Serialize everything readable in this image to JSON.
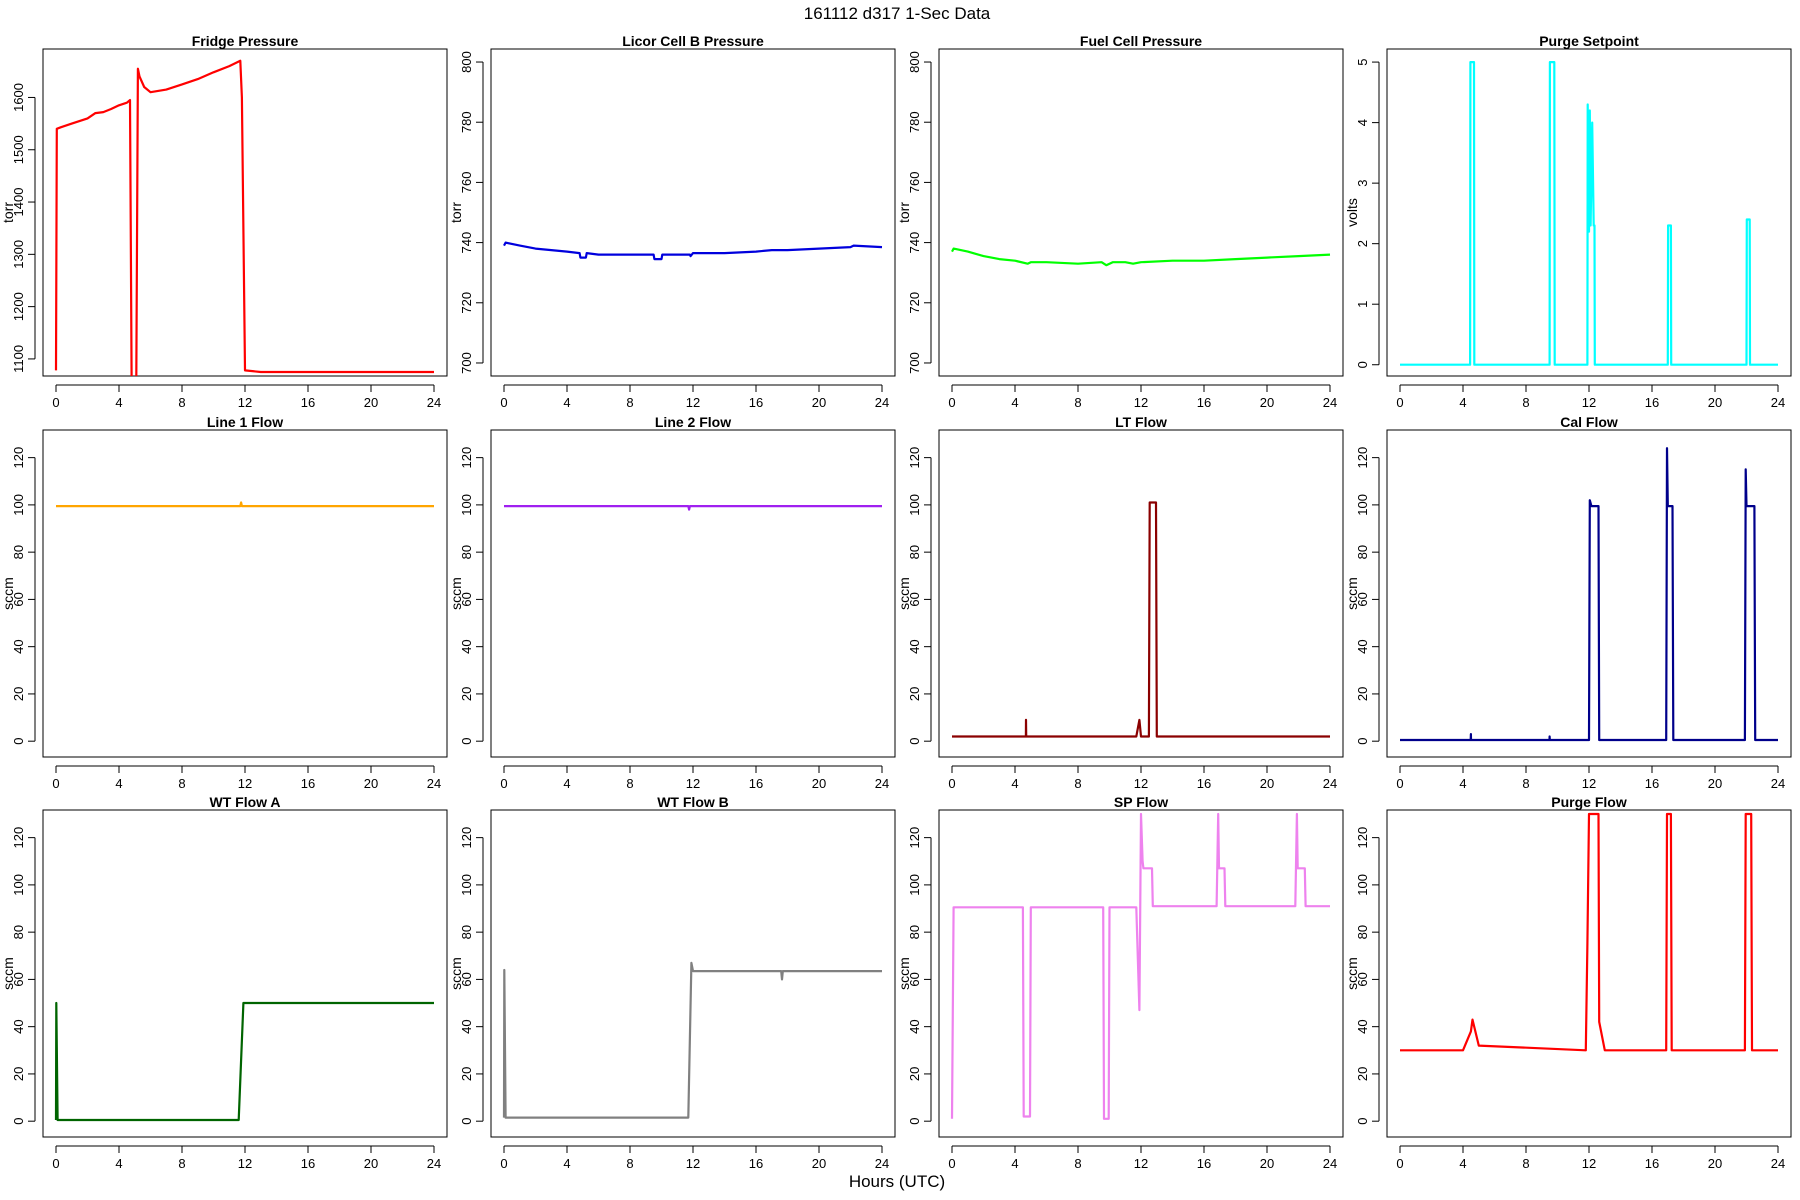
{
  "figure": {
    "title": "161112   d317   1-Sec Data",
    "xlabel": "Hours (UTC)"
  },
  "chart_data": [
    {
      "type": "line",
      "title": "Fridge Pressure",
      "ylabel": "torr",
      "color": "#ff0000",
      "xlim": [
        0,
        24
      ],
      "ylim": [
        1075,
        1685
      ],
      "xticks": [
        0,
        4,
        8,
        12,
        16,
        20,
        24
      ],
      "yticks": [
        1100,
        1200,
        1300,
        1400,
        1500,
        1600
      ],
      "series": [
        {
          "x": [
            0,
            0.05,
            0.3,
            1,
            2,
            2.5,
            3,
            3.5,
            4,
            4.5,
            4.7,
            4.8,
            4.9,
            5.1,
            5.2,
            5.3,
            5.6,
            6,
            7,
            8,
            9,
            10,
            11,
            11.7,
            11.8,
            12,
            13,
            16,
            20,
            24
          ],
          "y": [
            1078,
            1540,
            1543,
            1550,
            1560,
            1570,
            1572,
            1578,
            1585,
            1590,
            1595,
            1065,
            1060,
            1062,
            1655,
            1640,
            1620,
            1610,
            1615,
            1625,
            1635,
            1648,
            1660,
            1670,
            1600,
            1078,
            1075,
            1075,
            1075,
            1075
          ]
        }
      ]
    },
    {
      "type": "line",
      "title": "Licor Cell B Pressure",
      "ylabel": "torr",
      "color": "#0000dd",
      "xlim": [
        0,
        24
      ],
      "ylim": [
        697,
        803
      ],
      "xticks": [
        0,
        4,
        8,
        12,
        16,
        20,
        24
      ],
      "yticks": [
        700,
        720,
        740,
        760,
        780,
        800
      ],
      "series": [
        {
          "x": [
            0,
            0.1,
            1,
            2,
            3,
            4,
            4.8,
            4.85,
            5.2,
            5.25,
            6,
            8,
            9.5,
            9.55,
            10,
            10.05,
            11,
            11.8,
            11.85,
            12,
            14,
            16,
            17,
            18,
            20,
            22,
            22.2,
            24
          ],
          "y": [
            739,
            740,
            739,
            738,
            737.5,
            737,
            736.5,
            735,
            735,
            736.5,
            736,
            736,
            736,
            734.5,
            734.5,
            736,
            736,
            736,
            735.5,
            736.5,
            736.5,
            737,
            737.5,
            737.5,
            738,
            738.5,
            739,
            738.5
          ]
        }
      ]
    },
    {
      "type": "line",
      "title": "Fuel Cell Pressure",
      "ylabel": "torr",
      "color": "#00ff00",
      "xlim": [
        0,
        24
      ],
      "ylim": [
        697,
        803
      ],
      "xticks": [
        0,
        4,
        8,
        12,
        16,
        20,
        24
      ],
      "yticks": [
        700,
        720,
        740,
        760,
        780,
        800
      ],
      "series": [
        {
          "x": [
            0,
            0.1,
            1,
            2,
            3,
            4,
            4.8,
            5,
            6,
            8,
            9.5,
            9.8,
            10.2,
            11,
            11.5,
            12,
            14,
            16,
            18,
            20,
            22,
            24
          ],
          "y": [
            737,
            738,
            737,
            735.5,
            734.5,
            734,
            733,
            733.5,
            733.5,
            733,
            733.5,
            732.5,
            733.5,
            733.5,
            733,
            733.5,
            734,
            734,
            734.5,
            735,
            735.5,
            736
          ]
        }
      ]
    },
    {
      "type": "line",
      "title": "Purge Setpoint",
      "ylabel": "volts",
      "color": "#00ffff",
      "xlim": [
        0,
        24
      ],
      "ylim": [
        -0.12,
        5.15
      ],
      "xticks": [
        0,
        4,
        8,
        12,
        16,
        20,
        24
      ],
      "yticks": [
        0,
        1,
        2,
        3,
        4,
        5
      ],
      "series": [
        {
          "x": [
            0,
            4.45,
            4.47,
            4.7,
            4.72,
            9.5,
            9.52,
            9.8,
            9.82,
            11.9,
            11.92,
            12.0,
            12.05,
            12.1,
            12.2,
            12.3,
            12.35,
            12.37,
            17.0,
            17.02,
            17.2,
            17.22,
            22.0,
            22.02,
            22.2,
            22.22,
            24
          ],
          "y": [
            0,
            0,
            5,
            5,
            0,
            0,
            5,
            5,
            0,
            0,
            4.3,
            2.2,
            4.2,
            2.3,
            4.0,
            2.3,
            2.3,
            0,
            0,
            2.3,
            2.3,
            0,
            0,
            2.4,
            2.4,
            0,
            0
          ]
        }
      ]
    },
    {
      "type": "line",
      "title": "Line 1 Flow",
      "ylabel": "sccm",
      "color": "#ffa500",
      "xlim": [
        0,
        24
      ],
      "ylim": [
        -5,
        130
      ],
      "xticks": [
        0,
        4,
        8,
        12,
        16,
        20,
        24
      ],
      "yticks": [
        0,
        20,
        40,
        60,
        80,
        100,
        120
      ],
      "series": [
        {
          "x": [
            0,
            11.7,
            11.75,
            11.8,
            24
          ],
          "y": [
            99.5,
            99.5,
            101,
            99.5,
            99.5
          ]
        }
      ]
    },
    {
      "type": "line",
      "title": "Line 2 Flow",
      "ylabel": "sccm",
      "color": "#a020f0",
      "xlim": [
        0,
        24
      ],
      "ylim": [
        -5,
        130
      ],
      "xticks": [
        0,
        4,
        8,
        12,
        16,
        20,
        24
      ],
      "yticks": [
        0,
        20,
        40,
        60,
        80,
        100,
        120
      ],
      "series": [
        {
          "x": [
            0,
            11.7,
            11.75,
            11.8,
            24
          ],
          "y": [
            99.5,
            99.5,
            98,
            99.5,
            99.5
          ]
        }
      ]
    },
    {
      "type": "line",
      "title": "LT Flow",
      "ylabel": "sccm",
      "color": "#8b0000",
      "xlim": [
        0,
        24
      ],
      "ylim": [
        -5,
        130
      ],
      "xticks": [
        0,
        4,
        8,
        12,
        16,
        20,
        24
      ],
      "yticks": [
        0,
        20,
        40,
        60,
        80,
        100,
        120
      ],
      "series": [
        {
          "x": [
            0,
            4.69,
            4.7,
            4.71,
            11.7,
            11.9,
            12.0,
            12.5,
            12.55,
            12.95,
            13.0,
            24
          ],
          "y": [
            2,
            2,
            9,
            2,
            2,
            9,
            2,
            2,
            101,
            101,
            2,
            2
          ]
        }
      ]
    },
    {
      "type": "line",
      "title": "Cal Flow",
      "ylabel": "sccm",
      "color": "#00008b",
      "xlim": [
        0,
        24
      ],
      "ylim": [
        -5,
        130
      ],
      "xticks": [
        0,
        4,
        8,
        12,
        16,
        20,
        24
      ],
      "yticks": [
        0,
        20,
        40,
        60,
        80,
        100,
        120
      ],
      "series": [
        {
          "x": [
            0,
            4.49,
            4.5,
            4.51,
            9.49,
            9.5,
            9.51,
            12.0,
            12.05,
            12.15,
            12.6,
            12.65,
            16.9,
            16.95,
            17.0,
            17.3,
            17.35,
            21.9,
            21.95,
            22.0,
            22.5,
            22.55,
            24
          ],
          "y": [
            0.5,
            0.5,
            3,
            0.5,
            0.5,
            2,
            0.5,
            0.5,
            102,
            99.5,
            99.5,
            0.5,
            0.5,
            124,
            99.5,
            99.5,
            0.5,
            0.5,
            115,
            99.5,
            99.5,
            0.5,
            0.5
          ]
        }
      ]
    },
    {
      "type": "line",
      "title": "WT Flow A",
      "ylabel": "sccm",
      "color": "#006400",
      "xlim": [
        0,
        24
      ],
      "ylim": [
        -5,
        130
      ],
      "xticks": [
        0,
        4,
        8,
        12,
        16,
        20,
        24
      ],
      "yticks": [
        0,
        20,
        40,
        60,
        80,
        100,
        120
      ],
      "series": [
        {
          "x": [
            0,
            0.02,
            0.1,
            4,
            8,
            11.6,
            11.9,
            16,
            20,
            24
          ],
          "y": [
            0.5,
            50,
            0.5,
            0.5,
            0.5,
            0.5,
            50,
            50,
            50,
            50
          ]
        }
      ]
    },
    {
      "type": "line",
      "title": "WT Flow B",
      "ylabel": "sccm",
      "color": "#808080",
      "xlim": [
        0,
        24
      ],
      "ylim": [
        -5,
        130
      ],
      "xticks": [
        0,
        4,
        8,
        12,
        16,
        20,
        24
      ],
      "yticks": [
        0,
        20,
        40,
        60,
        80,
        100,
        120
      ],
      "series": [
        {
          "x": [
            0,
            0.02,
            0.1,
            4,
            8,
            11.7,
            11.9,
            12.0,
            16,
            17.6,
            17.65,
            17.7,
            20,
            24
          ],
          "y": [
            1.5,
            64,
            1.5,
            1.5,
            1.5,
            1.5,
            67,
            63.5,
            63.5,
            63.5,
            60,
            63.5,
            63.5,
            63.5
          ]
        }
      ]
    },
    {
      "type": "line",
      "title": "SP Flow",
      "ylabel": "sccm",
      "color": "#ee82ee",
      "xlim": [
        0,
        24
      ],
      "ylim": [
        -5,
        130
      ],
      "xticks": [
        0,
        4,
        8,
        12,
        16,
        20,
        24
      ],
      "yticks": [
        0,
        20,
        40,
        60,
        80,
        100,
        120
      ],
      "series": [
        {
          "x": [
            0,
            0.1,
            4,
            4.5,
            4.55,
            4.95,
            5.0,
            9,
            9.6,
            9.65,
            9.95,
            10.0,
            11.5,
            11.7,
            11.9,
            12.0,
            12.1,
            12.15,
            12.7,
            12.75,
            16.8,
            16.9,
            16.95,
            17.3,
            17.35,
            21.8,
            21.9,
            21.95,
            22.4,
            22.45,
            24
          ],
          "y": [
            1,
            90.5,
            90.5,
            90.5,
            2,
            2,
            90.5,
            90.5,
            90.5,
            1,
            1,
            90.5,
            90.5,
            90.5,
            47,
            130,
            110,
            107,
            107,
            91,
            91,
            130,
            107,
            107,
            91,
            91,
            130,
            107,
            107,
            91,
            91
          ]
        }
      ]
    },
    {
      "type": "line",
      "title": "Purge Flow",
      "ylabel": "sccm",
      "color": "#ff0000",
      "xlim": [
        0,
        24
      ],
      "ylim": [
        -5,
        130
      ],
      "xticks": [
        0,
        4,
        8,
        12,
        16,
        20,
        24
      ],
      "yticks": [
        0,
        20,
        40,
        60,
        80,
        100,
        120
      ],
      "series": [
        {
          "x": [
            0,
            4,
            4.5,
            4.6,
            5,
            11.8,
            11.9,
            12.0,
            12.6,
            12.65,
            13,
            16.9,
            16.95,
            17.2,
            17.25,
            21.9,
            21.95,
            22.3,
            22.35,
            24
          ],
          "y": [
            30,
            30,
            38,
            43,
            32,
            30,
            75,
            130,
            130,
            42,
            30,
            30,
            130,
            130,
            30,
            30,
            130,
            130,
            30,
            30
          ]
        }
      ]
    }
  ]
}
